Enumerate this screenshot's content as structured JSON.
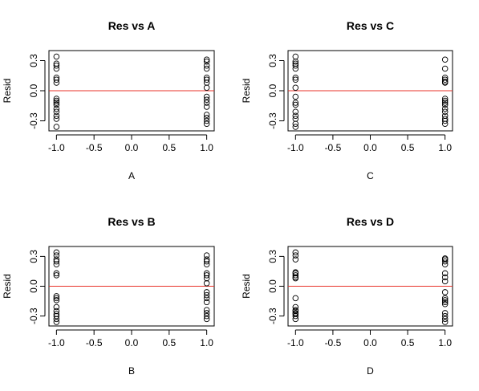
{
  "colors": {
    "refline": "#e8332a",
    "point": "#000000",
    "frame": "#000000"
  },
  "chart_data": [
    {
      "type": "scatter",
      "title": "Res vs A",
      "xlabel": "A",
      "ylabel": "Resid",
      "xlim": [
        -1.1,
        1.1
      ],
      "ylim": [
        -0.4,
        0.4
      ],
      "xticks": [
        -1.0,
        -0.5,
        0.0,
        0.5,
        1.0
      ],
      "xtick_labels": [
        "-1.0",
        "-0.5",
        "0.0",
        "0.5",
        "1.0"
      ],
      "yticks": [
        -0.3,
        0.0,
        0.3
      ],
      "ytick_labels": [
        "-0.3",
        "0.0",
        "0.3"
      ],
      "hline": 0,
      "points": {
        "x": [
          -1,
          -1,
          -1,
          -1,
          -1,
          -1,
          -1,
          -1,
          -1,
          -1,
          -1,
          -1,
          -1,
          -1,
          -1,
          -1,
          1,
          1,
          1,
          1,
          1,
          1,
          1,
          1,
          1,
          1,
          1,
          1,
          1,
          1,
          1,
          1
        ],
        "y": [
          0.34,
          0.27,
          0.25,
          0.22,
          0.13,
          0.11,
          0.08,
          -0.08,
          -0.1,
          -0.12,
          -0.14,
          -0.18,
          -0.21,
          -0.25,
          -0.28,
          -0.36,
          0.31,
          0.29,
          0.25,
          0.22,
          0.13,
          0.11,
          0.08,
          0.03,
          -0.06,
          -0.09,
          -0.12,
          -0.16,
          -0.24,
          -0.27,
          -0.3,
          -0.33
        ]
      }
    },
    {
      "type": "scatter",
      "title": "Res vs C",
      "xlabel": "C",
      "ylabel": "Resid",
      "xlim": [
        -1.1,
        1.1
      ],
      "ylim": [
        -0.4,
        0.4
      ],
      "xticks": [
        -1.0,
        -0.5,
        0.0,
        0.5,
        1.0
      ],
      "xtick_labels": [
        "-1.0",
        "-0.5",
        "0.0",
        "0.5",
        "1.0"
      ],
      "yticks": [
        -0.3,
        0.0,
        0.3
      ],
      "ytick_labels": [
        "-0.3",
        "0.0",
        "0.3"
      ],
      "hline": 0,
      "points": {
        "x": [
          -1,
          -1,
          -1,
          -1,
          -1,
          -1,
          -1,
          -1,
          -1,
          -1,
          -1,
          -1,
          -1,
          -1,
          -1,
          -1,
          1,
          1,
          1,
          1,
          1,
          1,
          1,
          1,
          1,
          1,
          1,
          1,
          1,
          1,
          1,
          1
        ],
        "y": [
          0.34,
          0.29,
          0.27,
          0.25,
          0.22,
          0.13,
          0.11,
          0.03,
          -0.06,
          -0.12,
          -0.14,
          -0.21,
          -0.25,
          -0.28,
          -0.33,
          -0.36,
          0.31,
          0.22,
          0.13,
          0.11,
          0.09,
          0.08,
          -0.08,
          -0.1,
          -0.12,
          -0.14,
          -0.18,
          -0.21,
          -0.25,
          -0.28,
          -0.3,
          -0.33
        ]
      }
    },
    {
      "type": "scatter",
      "title": "Res vs B",
      "xlabel": "B",
      "ylabel": "Resid",
      "xlim": [
        -1.1,
        1.1
      ],
      "ylim": [
        -0.4,
        0.4
      ],
      "xticks": [
        -1.0,
        -0.5,
        0.0,
        0.5,
        1.0
      ],
      "xtick_labels": [
        "-1.0",
        "-0.5",
        "0.0",
        "0.5",
        "1.0"
      ],
      "yticks": [
        -0.3,
        0.0,
        0.3
      ],
      "ytick_labels": [
        "-0.3",
        "0.0",
        "0.3"
      ],
      "hline": 0,
      "points": {
        "x": [
          -1,
          -1,
          -1,
          -1,
          -1,
          -1,
          -1,
          -1,
          -1,
          -1,
          -1,
          -1,
          -1,
          -1,
          -1,
          -1,
          1,
          1,
          1,
          1,
          1,
          1,
          1,
          1,
          1,
          1,
          1,
          1,
          1,
          1,
          1,
          1
        ],
        "y": [
          0.34,
          0.31,
          0.27,
          0.25,
          0.22,
          0.13,
          0.11,
          -0.1,
          -0.12,
          -0.14,
          -0.21,
          -0.25,
          -0.28,
          -0.3,
          -0.33,
          -0.36,
          0.31,
          0.27,
          0.25,
          0.22,
          0.13,
          0.11,
          0.08,
          0.03,
          -0.06,
          -0.09,
          -0.12,
          -0.16,
          -0.24,
          -0.27,
          -0.3,
          -0.33
        ]
      }
    },
    {
      "type": "scatter",
      "title": "Res vs D",
      "xlabel": "D",
      "ylabel": "Resid",
      "xlim": [
        -1.1,
        1.1
      ],
      "ylim": [
        -0.4,
        0.4
      ],
      "xticks": [
        -1.0,
        -0.5,
        0.0,
        0.5,
        1.0
      ],
      "xtick_labels": [
        "-1.0",
        "-0.5",
        "0.0",
        "0.5",
        "1.0"
      ],
      "yticks": [
        -0.3,
        0.0,
        0.3
      ],
      "ytick_labels": [
        "-0.3",
        "0.0",
        "0.3"
      ],
      "hline": 0,
      "points": {
        "x": [
          -1,
          -1,
          -1,
          -1,
          -1,
          -1,
          -1,
          -1,
          -1,
          -1,
          -1,
          -1,
          -1,
          -1,
          -1,
          -1,
          1,
          1,
          1,
          1,
          1,
          1,
          1,
          1,
          1,
          1,
          1,
          1,
          1,
          1,
          1,
          1
        ],
        "y": [
          0.34,
          0.31,
          0.27,
          0.14,
          0.13,
          0.11,
          0.09,
          0.08,
          -0.12,
          -0.21,
          -0.24,
          -0.25,
          -0.27,
          -0.28,
          -0.3,
          -0.33,
          0.28,
          0.27,
          0.25,
          0.22,
          0.13,
          0.09,
          0.05,
          -0.06,
          -0.12,
          -0.14,
          -0.16,
          -0.18,
          -0.27,
          -0.3,
          -0.33,
          -0.36
        ]
      }
    }
  ]
}
